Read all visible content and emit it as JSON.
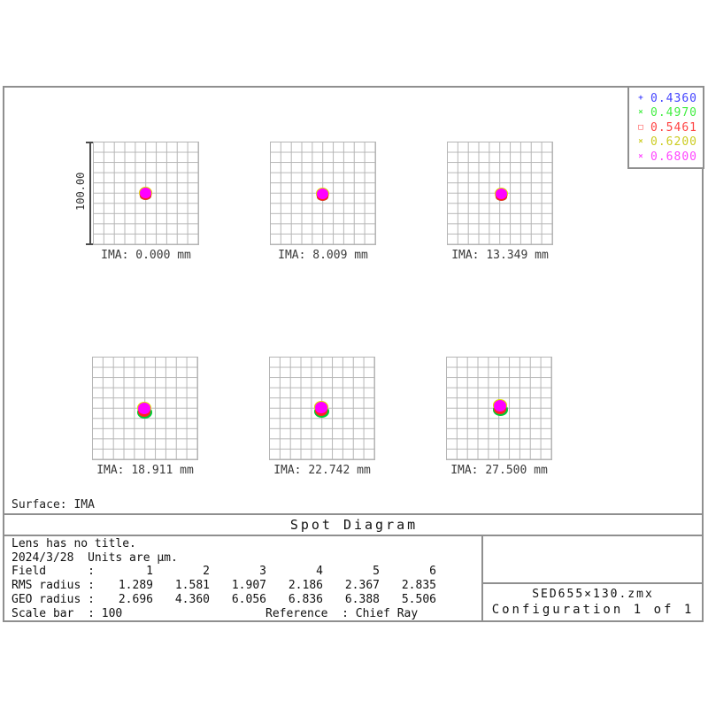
{
  "title": "Spot Diagram",
  "surface_label": "Surface: IMA",
  "scale_bar_label": "100.00",
  "legend": {
    "entries": [
      {
        "marker": "+",
        "label": "0.4360",
        "color": "#4444ff"
      },
      {
        "marker": "×",
        "label": "0.4970",
        "color": "#44ee44"
      },
      {
        "marker": "□",
        "label": "0.5461",
        "color": "#ff4444"
      },
      {
        "marker": "×",
        "label": "0.6200",
        "color": "#cccc22"
      },
      {
        "marker": "×",
        "label": "0.6800",
        "color": "#ff44ff"
      }
    ]
  },
  "grids": [
    {
      "ima": "IMA: 0.000 mm"
    },
    {
      "ima": "IMA: 8.009 mm"
    },
    {
      "ima": "IMA: 13.349 mm"
    },
    {
      "ima": "IMA: 18.911 mm"
    },
    {
      "ima": "IMA: 22.742 mm"
    },
    {
      "ima": "IMA: 27.500 mm"
    }
  ],
  "info": {
    "line1": "Lens has no title.",
    "line2": "2024/3/28  Units are µm.",
    "field_label": "Field      :",
    "rms_label": "RMS radius :",
    "geo_label": "GEO radius :",
    "fields": [
      "1",
      "2",
      "3",
      "4",
      "5",
      "6"
    ],
    "rms": [
      "1.289",
      "1.581",
      "1.907",
      "2.186",
      "2.367",
      "2.835"
    ],
    "geo": [
      "2.696",
      "4.360",
      "6.056",
      "6.836",
      "6.388",
      "5.506"
    ],
    "scale_line": "Scale bar  : 100",
    "reference_line": "Reference  : Chief Ray"
  },
  "footer": {
    "filename": "SED655×130.zmx",
    "configuration": "Configuration 1 of 1"
  },
  "colors": {
    "frame": "#8f8f8f",
    "grid_line": "#b5b5b5",
    "spot_magenta": "#ff00ff",
    "spot_red": "#ff2222",
    "spot_green": "#00cc33",
    "spot_yellow": "#dddd00"
  },
  "chart_data": {
    "type": "scatter",
    "title": "Spot Diagram",
    "surface": "IMA",
    "date": "2024/3/28",
    "units": "µm",
    "scale_bar": 100,
    "reference": "Chief Ray",
    "grid": {
      "rows": 10,
      "cols": 10,
      "side_units_um": 100
    },
    "wavelengths_um": [
      0.436,
      0.497,
      0.5461,
      0.62,
      0.68
    ],
    "wavelength_colors": [
      "#4444ff",
      "#44ee44",
      "#ff4444",
      "#cccc22",
      "#ff44ff"
    ],
    "fields": [
      {
        "field": 1,
        "ima_mm": 0.0,
        "rms_radius_um": 1.289,
        "geo_radius_um": 2.696
      },
      {
        "field": 2,
        "ima_mm": 8.009,
        "rms_radius_um": 1.581,
        "geo_radius_um": 4.36
      },
      {
        "field": 3,
        "ima_mm": 13.349,
        "rms_radius_um": 1.907,
        "geo_radius_um": 6.056
      },
      {
        "field": 4,
        "ima_mm": 18.911,
        "rms_radius_um": 2.186,
        "geo_radius_um": 6.836
      },
      {
        "field": 5,
        "ima_mm": 22.742,
        "rms_radius_um": 2.367,
        "geo_radius_um": 6.388
      },
      {
        "field": 6,
        "ima_mm": 27.5,
        "rms_radius_um": 2.835,
        "geo_radius_um": 5.506
      }
    ],
    "filename": "SED655×130.zmx",
    "configuration": "Configuration 1 of 1",
    "legend_position": "top-right",
    "grid_on": true
  }
}
